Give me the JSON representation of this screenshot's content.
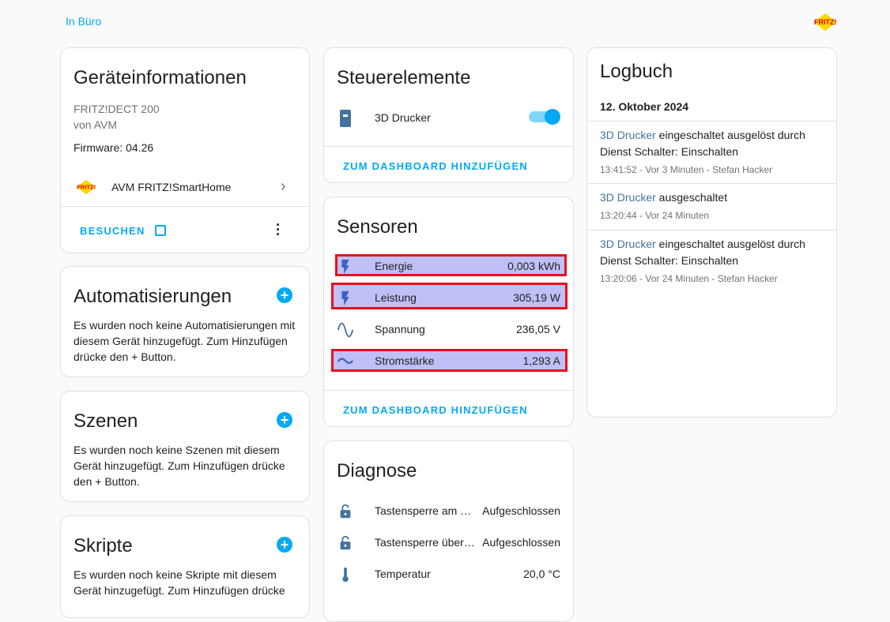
{
  "breadcrumb": "In Büro",
  "device_info": {
    "title": "Geräteinformationen",
    "model": "FRITZ!DECT 200",
    "manufacturer": "von AVM",
    "firmware": "Firmware: 04.26",
    "integration": "AVM FRITZ!SmartHome",
    "visit": "BESUCHEN"
  },
  "automations": {
    "title": "Automatisierungen",
    "text": "Es wurden noch keine Automatisierungen mit diesem Gerät hinzugefügt. Zum Hinzufügen drücke den + Button."
  },
  "scenes": {
    "title": "Szenen",
    "text": "Es wurden noch keine Szenen mit diesem Gerät hinzugefügt. Zum Hinzufügen drücke den + Button."
  },
  "scripts": {
    "title": "Skripte",
    "text": "Es wurden noch keine Skripte mit diesem Gerät hinzugefügt. Zum Hinzufügen drücke"
  },
  "controls": {
    "title": "Steuerelemente",
    "entity": "3D Drucker",
    "switch_on": true,
    "add": "ZUM DASHBOARD HINZUFÜGEN"
  },
  "sensors": {
    "title": "Sensoren",
    "add": "ZUM DASHBOARD HINZUFÜGEN",
    "items": [
      {
        "label": "Energie",
        "value": "0,003 kWh",
        "icon": "flash-icon"
      },
      {
        "label": "Leistung",
        "value": "305,19 W",
        "icon": "flash-icon"
      },
      {
        "label": "Spannung",
        "value": "236,05 V",
        "icon": "sine-wave-icon"
      },
      {
        "label": "Stromstärke",
        "value": "1,293 A",
        "icon": "current-ac-icon"
      }
    ]
  },
  "diagnostics": {
    "title": "Diagnose",
    "items": [
      {
        "label": "Tastensperre am …",
        "value": "Aufgeschlossen",
        "icon": "lock-open-icon"
      },
      {
        "label": "Tastensperre über…",
        "value": "Aufgeschlossen",
        "icon": "lock-open-icon"
      },
      {
        "label": "Temperatur",
        "value": "20,0 °C",
        "icon": "thermometer-icon"
      }
    ]
  },
  "logbook": {
    "title": "Logbuch",
    "date": "12. Oktober 2024",
    "entries": [
      {
        "entity": "3D Drucker",
        "text": " eingeschaltet ausgelöst durch Dienst Schalter: Einschalten",
        "meta": "13:41:52 - Vor 3 Minuten - Stefan Hacker"
      },
      {
        "entity": "3D Drucker",
        "text": " ausgeschaltet",
        "meta": "13:20:44 - Vor 24 Minuten"
      },
      {
        "entity": "3D Drucker",
        "text": " eingeschaltet ausgelöst durch Dienst Schalter: Einschalten",
        "meta": "13:20:06 - Vor 24 Minuten - Stefan Hacker"
      }
    ]
  },
  "colors": {
    "accent": "#03a9f4",
    "icon": "#44739e",
    "highlight": "#c0c0f8",
    "highlight_border": "#e8101a"
  }
}
